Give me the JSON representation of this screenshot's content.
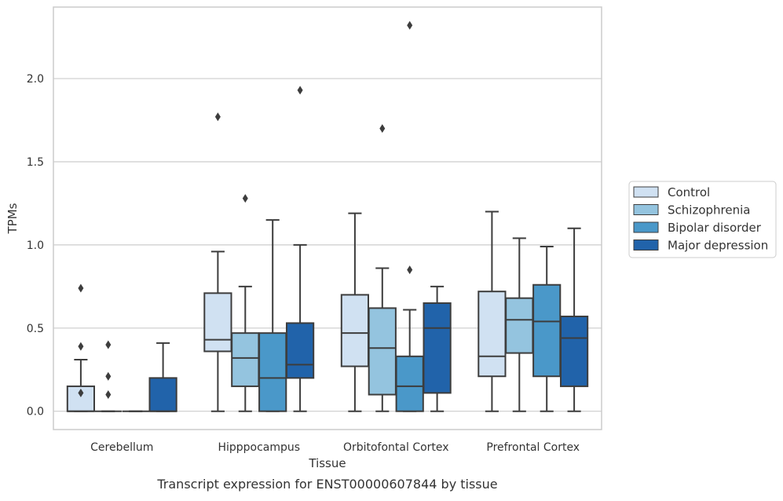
{
  "caption": "Transcript expression for ENST00000607844 by tissue",
  "chart_data": {
    "type": "box",
    "xlabel": "Tissue",
    "ylabel": "TPMs",
    "ylim": [
      -0.11,
      2.43
    ],
    "grid": "horizontal",
    "legend_placement": "right, outside plot",
    "categories": [
      "Cerebellum",
      "Hipppocampus",
      "Orbitofontal Cortex",
      "Prefrontal Cortex"
    ],
    "y_ticks": [
      {
        "value": 0.0,
        "label": "0.0"
      },
      {
        "value": 0.5,
        "label": "0.5"
      },
      {
        "value": 1.0,
        "label": "1.0"
      },
      {
        "value": 1.5,
        "label": "1.5"
      },
      {
        "value": 2.0,
        "label": "2.0"
      }
    ],
    "series": [
      {
        "name": "Control",
        "color": "#d0e1f2",
        "boxes": [
          {
            "whisker_low": 0.0,
            "q1": 0.0,
            "median": 0.0,
            "q3": 0.15,
            "whisker_high": 0.31,
            "outliers": [
              0.74,
              0.39,
              0.11
            ]
          },
          {
            "whisker_low": 0.0,
            "q1": 0.36,
            "median": 0.43,
            "q3": 0.71,
            "whisker_high": 0.96,
            "outliers": [
              1.77
            ]
          },
          {
            "whisker_low": 0.0,
            "q1": 0.27,
            "median": 0.47,
            "q3": 0.7,
            "whisker_high": 1.19,
            "outliers": []
          },
          {
            "whisker_low": 0.0,
            "q1": 0.21,
            "median": 0.33,
            "q3": 0.72,
            "whisker_high": 1.2,
            "outliers": []
          }
        ]
      },
      {
        "name": "Schizophrenia",
        "color": "#94c4df",
        "boxes": [
          {
            "whisker_low": 0.0,
            "q1": 0.0,
            "median": 0.0,
            "q3": 0.0,
            "whisker_high": 0.0,
            "outliers": [
              0.4,
              0.21,
              0.1
            ]
          },
          {
            "whisker_low": 0.0,
            "q1": 0.15,
            "median": 0.32,
            "q3": 0.47,
            "whisker_high": 0.75,
            "outliers": [
              1.28
            ]
          },
          {
            "whisker_low": 0.0,
            "q1": 0.1,
            "median": 0.38,
            "q3": 0.62,
            "whisker_high": 0.86,
            "outliers": [
              1.7
            ]
          },
          {
            "whisker_low": 0.0,
            "q1": 0.35,
            "median": 0.55,
            "q3": 0.68,
            "whisker_high": 1.04,
            "outliers": []
          }
        ]
      },
      {
        "name": "Bipolar disorder",
        "color": "#4a98c9",
        "boxes": [
          {
            "whisker_low": 0.0,
            "q1": 0.0,
            "median": 0.0,
            "q3": 0.0,
            "whisker_high": 0.0,
            "outliers": []
          },
          {
            "whisker_low": 0.0,
            "q1": 0.0,
            "median": 0.2,
            "q3": 0.47,
            "whisker_high": 1.15,
            "outliers": []
          },
          {
            "whisker_low": 0.0,
            "q1": 0.0,
            "median": 0.15,
            "q3": 0.33,
            "whisker_high": 0.61,
            "outliers": [
              0.85,
              2.32
            ]
          },
          {
            "whisker_low": 0.0,
            "q1": 0.21,
            "median": 0.54,
            "q3": 0.76,
            "whisker_high": 0.99,
            "outliers": []
          }
        ]
      },
      {
        "name": "Major depression",
        "color": "#2163aa",
        "boxes": [
          {
            "whisker_low": 0.0,
            "q1": 0.0,
            "median": 0.0,
            "q3": 0.2,
            "whisker_high": 0.41,
            "outliers": []
          },
          {
            "whisker_low": 0.0,
            "q1": 0.2,
            "median": 0.28,
            "q3": 0.53,
            "whisker_high": 1.0,
            "outliers": [
              1.93
            ]
          },
          {
            "whisker_low": 0.0,
            "q1": 0.11,
            "median": 0.5,
            "q3": 0.65,
            "whisker_high": 0.75,
            "outliers": []
          },
          {
            "whisker_low": 0.0,
            "q1": 0.15,
            "median": 0.44,
            "q3": 0.57,
            "whisker_high": 1.1,
            "outliers": []
          }
        ]
      }
    ]
  }
}
